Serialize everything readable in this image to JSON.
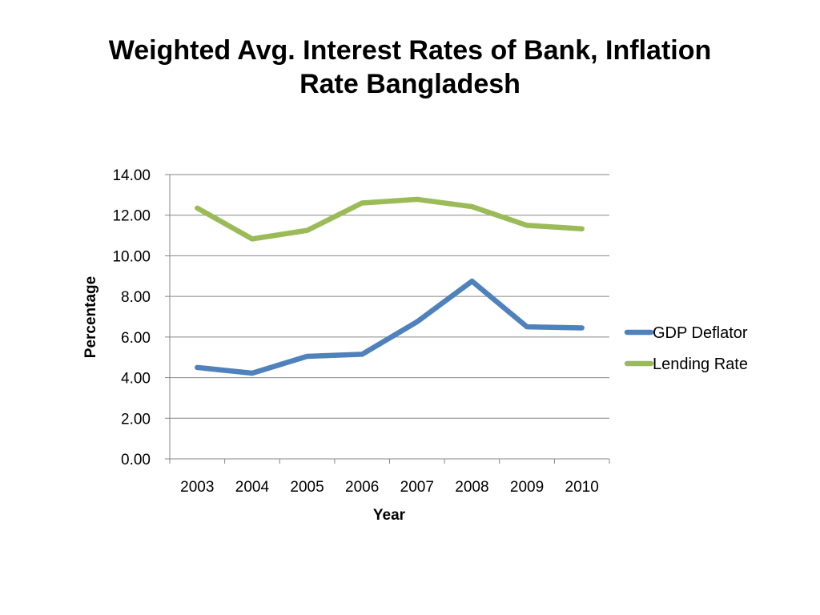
{
  "chart_data": {
    "type": "line",
    "title_line1": "Weighted Avg. Interest Rates of Bank, Inflation",
    "title_line2": "Rate Bangladesh",
    "xlabel": "Year",
    "ylabel": "Percentage",
    "categories": [
      "2003",
      "2004",
      "2005",
      "2006",
      "2007",
      "2008",
      "2009",
      "2010"
    ],
    "ylim": [
      0,
      14
    ],
    "ytick_labels": [
      "0.00",
      "2.00",
      "4.00",
      "6.00",
      "8.00",
      "10.00",
      "12.00",
      "14.00"
    ],
    "grid": "horizontal",
    "legend_position": "right",
    "series": [
      {
        "name": "GDP Deflator",
        "color": "#4F81BD",
        "values": [
          4.5,
          4.22,
          5.05,
          5.15,
          6.75,
          8.75,
          6.5,
          6.45
        ]
      },
      {
        "name": "Lending Rate",
        "color": "#9BBB59",
        "values": [
          12.35,
          10.83,
          11.25,
          12.6,
          12.78,
          12.42,
          11.5,
          11.33
        ]
      }
    ]
  }
}
